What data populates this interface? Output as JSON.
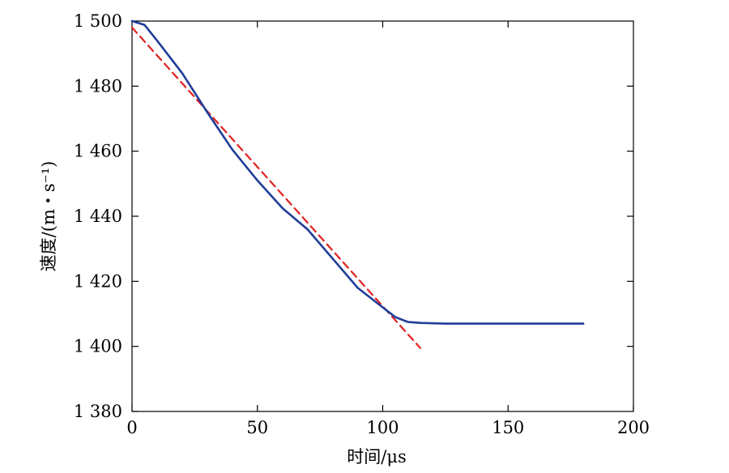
{
  "chart_data": {
    "type": "line",
    "xlabel": "时间/μs",
    "ylabel": "速度/(m・s⁻¹)",
    "xlim": [
      0,
      200
    ],
    "ylim": [
      1380,
      1500
    ],
    "x_ticks": [
      0,
      50,
      100,
      150,
      200
    ],
    "x_tick_labels": [
      "0",
      "50",
      "100",
      "150",
      "200"
    ],
    "y_ticks": [
      1380,
      1400,
      1420,
      1440,
      1460,
      1480,
      1500
    ],
    "y_tick_labels": [
      "1 380",
      "1 400",
      "1 420",
      "1 440",
      "1 460",
      "1 480",
      "1 500"
    ],
    "grid": false,
    "legend": "none",
    "series": [
      {
        "color": "#1f3d99",
        "style": "solid",
        "x": [
          0,
          5,
          10,
          20,
          30,
          40,
          50,
          60,
          70,
          80,
          90,
          100,
          105,
          110,
          115,
          125,
          150,
          180
        ],
        "y": [
          1500,
          1498.8,
          1494,
          1484,
          1472,
          1460.5,
          1451,
          1442.5,
          1436,
          1427,
          1418,
          1412,
          1409,
          1407.5,
          1407.2,
          1407,
          1407,
          1407
        ]
      },
      {
        "color": "#e02020",
        "style": "dashed",
        "x": [
          0,
          115
        ],
        "y": [
          1498,
          1399.5
        ]
      }
    ]
  }
}
